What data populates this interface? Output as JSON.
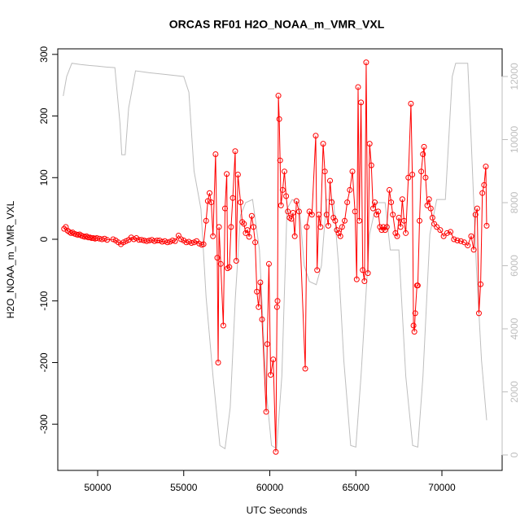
{
  "chart_data": {
    "type": "line",
    "title": "ORCAS RF01 H2O_NOAA_m_VMR_VXL",
    "x_label": "UTC Seconds",
    "y_label": "H2O_NOAA_m_VMR_VXL",
    "xlim": [
      47683,
      73499
    ],
    "xticks": [
      50000,
      55000,
      60000,
      65000,
      70000
    ],
    "ylim": [
      -375,
      309
    ],
    "yticks": [
      -300,
      -200,
      -100,
      0,
      100,
      200,
      300
    ],
    "y2lim": [
      -490,
      12877
    ],
    "y2ticks": [
      0,
      2000,
      4000,
      6000,
      8000,
      10000,
      12000
    ],
    "series": [
      {
        "color": "#bebebe",
        "markers": false,
        "x": [
          48000,
          48200,
          48500,
          49000,
          49500,
          50000,
          50500,
          51000,
          51300,
          51400,
          51600,
          51800,
          52200,
          53000,
          54000,
          55000,
          55300,
          55600,
          56000,
          56300,
          56700,
          57100,
          57400,
          57700,
          58000,
          58300,
          58600,
          59000,
          59400,
          59800,
          60100,
          60400,
          60700,
          61000,
          61300,
          61700,
          62000,
          62300,
          62700,
          63000,
          63300,
          63700,
          64000,
          64300,
          64700,
          65000,
          65300,
          65800,
          66200,
          66700,
          67000,
          67500,
          67900,
          68300,
          68600,
          68900,
          69300,
          69700,
          70200,
          70600,
          70800,
          71500,
          71700,
          72000,
          72300,
          72600
        ],
        "values": [
          11380,
          12000,
          12420,
          12380,
          12350,
          12330,
          12300,
          12280,
          10500,
          9520,
          9520,
          11000,
          12180,
          12120,
          12060,
          12000,
          11500,
          9000,
          7800,
          5000,
          2500,
          300,
          200,
          1500,
          5000,
          7600,
          8000,
          8100,
          6500,
          2000,
          300,
          200,
          2500,
          7800,
          8100,
          8000,
          6000,
          5500,
          5400,
          6000,
          8100,
          8100,
          6000,
          3000,
          300,
          250,
          2500,
          7000,
          8000,
          8000,
          6500,
          6500,
          2500,
          300,
          250,
          2500,
          7000,
          8100,
          8100,
          12000,
          12420,
          12420,
          10000,
          6000,
          3000,
          1100
        ],
        "axis": "y2"
      },
      {
        "color": "#ff0000",
        "markers": true,
        "x": [
          48050,
          48150,
          48250,
          48350,
          48450,
          48550,
          48650,
          48750,
          48850,
          48950,
          49050,
          49150,
          49250,
          49350,
          49450,
          49550,
          49650,
          49750,
          49850,
          49950,
          50100,
          50250,
          50400,
          50550,
          50900,
          51050,
          51200,
          51350,
          51500,
          51650,
          51800,
          51950,
          52100,
          52250,
          52400,
          52550,
          52700,
          52850,
          53000,
          53150,
          53300,
          53450,
          53600,
          53750,
          53900,
          54050,
          54200,
          54350,
          54500,
          54700,
          54850,
          55000,
          55150,
          55300,
          55450,
          55600,
          55750,
          55900,
          56050,
          56150,
          56300,
          56400,
          56500,
          56600,
          56700,
          56850,
          56950,
          57000,
          57050,
          57150,
          57300,
          57400,
          57500,
          57550,
          57650,
          57750,
          57850,
          57990,
          58050,
          58150,
          58300,
          58400,
          58500,
          58600,
          58700,
          58800,
          58950,
          59050,
          59150,
          59250,
          59350,
          59450,
          59550,
          59790,
          59850,
          59950,
          60050,
          60200,
          60350,
          60420,
          60450,
          60500,
          60550,
          60600,
          60650,
          60750,
          60850,
          60950,
          61050,
          61150,
          61250,
          61350,
          61450,
          61550,
          61700,
          62060,
          62150,
          62300,
          62450,
          62670,
          62750,
          62850,
          62950,
          63100,
          63200,
          63300,
          63400,
          63500,
          63600,
          63700,
          63800,
          63900,
          64000,
          64100,
          64200,
          64350,
          64500,
          64650,
          64800,
          64950,
          65050,
          65130,
          65200,
          65300,
          65400,
          65500,
          65600,
          65700,
          65800,
          65900,
          66000,
          66100,
          66200,
          66300,
          66400,
          66500,
          66600,
          66700,
          66800,
          66950,
          67050,
          67150,
          67300,
          67400,
          67500,
          67600,
          67700,
          67800,
          67900,
          68050,
          68200,
          68280,
          68350,
          68400,
          68450,
          68550,
          68600,
          68700,
          68800,
          68900,
          68960,
          69050,
          69150,
          69250,
          69350,
          69450,
          69550,
          69700,
          69900,
          70100,
          70300,
          70500,
          70700,
          70900,
          71100,
          71300,
          71500,
          71700,
          71850,
          71950,
          72050,
          72150,
          72250,
          72350,
          72450,
          72550,
          72600
        ],
        "values": [
          17,
          20,
          14,
          12,
          10,
          11,
          9,
          8,
          7,
          8,
          6,
          5,
          4,
          5,
          3,
          3,
          2,
          2,
          1,
          2,
          1,
          0,
          1,
          -1,
          0,
          -2,
          -5,
          -8,
          -5,
          -3,
          -1,
          3,
          0,
          2,
          -1,
          -1,
          -2,
          -3,
          -2,
          -1,
          -3,
          -2,
          -2,
          -4,
          -3,
          -5,
          -4,
          -2,
          -3,
          6,
          0,
          -2,
          -5,
          -4,
          -6,
          -5,
          -3,
          -7,
          -9,
          -8,
          30,
          62,
          75,
          60,
          5,
          138,
          -30,
          -200,
          20,
          -40,
          -140,
          50,
          106,
          -47,
          -45,
          20,
          67,
          143,
          -35,
          105,
          60,
          28,
          25,
          10,
          15,
          4,
          38,
          20,
          -5,
          -85,
          -110,
          -70,
          -130,
          -280,
          -170,
          -40,
          -220,
          -195,
          -345,
          -110,
          -100,
          233,
          195,
          128,
          55,
          80,
          110,
          70,
          45,
          35,
          33,
          43,
          5,
          62,
          45,
          -210,
          20,
          45,
          40,
          168,
          -50,
          40,
          20,
          155,
          110,
          40,
          22,
          95,
          60,
          35,
          30,
          15,
          10,
          5,
          20,
          30,
          60,
          80,
          110,
          45,
          -65,
          247,
          30,
          222,
          -50,
          -68,
          287,
          -55,
          155,
          120,
          50,
          60,
          40,
          45,
          20,
          15,
          20,
          15,
          20,
          80,
          60,
          40,
          10,
          5,
          35,
          20,
          65,
          30,
          10,
          100,
          220,
          105,
          -140,
          -150,
          -120,
          -75,
          -75,
          30,
          110,
          138,
          150,
          100,
          55,
          65,
          50,
          35,
          25,
          20,
          15,
          5,
          10,
          12,
          0,
          -2,
          -3,
          -5,
          -10,
          5,
          -17,
          40,
          50,
          -120,
          -73,
          75,
          88,
          118,
          22
        ]
      }
    ]
  }
}
